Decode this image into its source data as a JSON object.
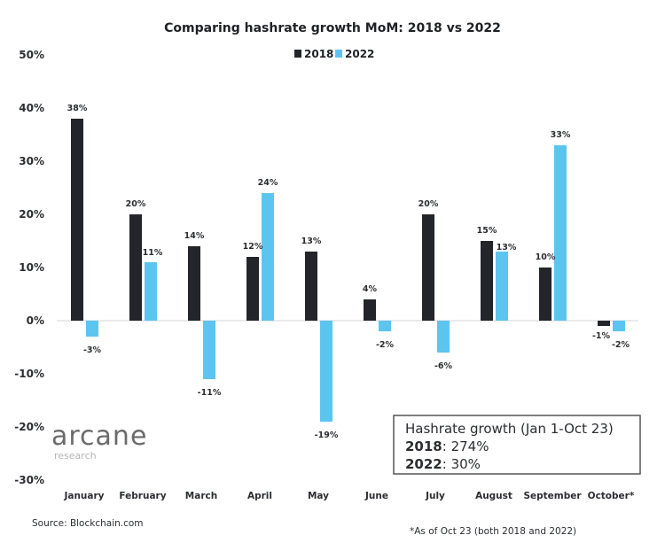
{
  "chart_data": {
    "type": "bar",
    "title": "Comparing hashrate growth MoM: 2018 vs 2022",
    "xlabel": "",
    "ylabel": "",
    "ylim": [
      -30,
      50
    ],
    "yticks": [
      50,
      40,
      30,
      20,
      10,
      0,
      -10,
      -20,
      -30
    ],
    "ytick_labels": [
      "50%",
      "40%",
      "30%",
      "20%",
      "10%",
      "0%",
      "-10%",
      "-20%",
      "-30%"
    ],
    "grid": false,
    "legend_position": "top-center",
    "categories": [
      "January",
      "February",
      "March",
      "April",
      "May",
      "June",
      "July",
      "August",
      "September",
      "October*"
    ],
    "series": [
      {
        "name": "2018",
        "color": "#23252a",
        "values": [
          38,
          20,
          14,
          12,
          13,
          4,
          20,
          15,
          10,
          -1
        ],
        "labels": [
          "38%",
          "20%",
          "14%",
          "12%",
          "13%",
          "4%",
          "20%",
          "15%",
          "10%",
          "-1%"
        ]
      },
      {
        "name": "2022",
        "color": "#5bc5f0",
        "values": [
          -3,
          11,
          -11,
          24,
          -19,
          -2,
          -6,
          13,
          33,
          -2
        ],
        "labels": [
          "-3%",
          "11%",
          "-11%",
          "24%",
          "-19%",
          "-2%",
          "-6%",
          "13%",
          "33%",
          "-2%"
        ]
      }
    ],
    "annotation_box": {
      "title": "Hashrate growth (Jan 1-Oct 23)",
      "rows": [
        {
          "year": "2018",
          "value": ": 274%"
        },
        {
          "year": "2022",
          "value": ": 30%"
        }
      ]
    },
    "source": "Source: Blockchain.com",
    "footnote": "*As of Oct 23 (both 2018 and 2022)",
    "logo": {
      "main": "arcane",
      "sub": "research"
    }
  }
}
